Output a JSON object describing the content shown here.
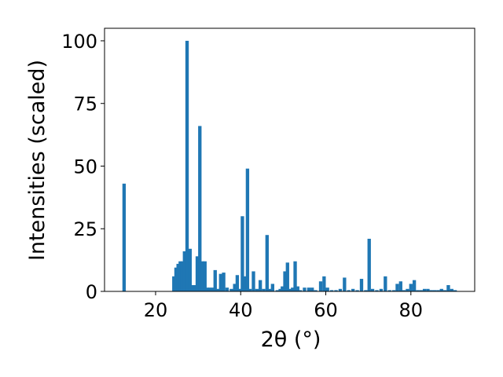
{
  "chart_data": {
    "type": "bar",
    "xlabel": "2θ (°)",
    "ylabel": "Intensities (scaled)",
    "xlim": [
      8,
      95
    ],
    "ylim": [
      0,
      105
    ],
    "xticks": [
      20,
      40,
      60,
      80
    ],
    "yticks": [
      0,
      25,
      50,
      75,
      100
    ],
    "bar_color": "#1f77b4",
    "bar_width": 0.8,
    "grid": false,
    "x": [
      12.6,
      24.3,
      24.8,
      25.3,
      25.8,
      26.3,
      26.8,
      27.4,
      28.1,
      28.7,
      29.3,
      29.8,
      30.4,
      31.0,
      31.6,
      32.1,
      32.7,
      33.4,
      34.0,
      34.6,
      35.3,
      36.0,
      36.8,
      37.8,
      38.6,
      39.2,
      39.8,
      40.4,
      41.0,
      41.6,
      42.2,
      43.0,
      43.8,
      44.6,
      45.4,
      46.2,
      46.8,
      47.5,
      48.6,
      49.3,
      49.8,
      50.4,
      51.0,
      51.6,
      52.2,
      52.8,
      53.4,
      54.0,
      55.0,
      56.0,
      56.8,
      57.6,
      58.8,
      59.6,
      60.4,
      61.4,
      62.4,
      63.4,
      64.4,
      65.4,
      66.4,
      67.4,
      68.4,
      69.4,
      70.2,
      71.0,
      72.0,
      73.0,
      74.0,
      75.0,
      76.0,
      76.8,
      77.6,
      78.4,
      79.2,
      80.0,
      80.8,
      81.6,
      82.4,
      83.2,
      84.0,
      84.8,
      85.6,
      86.4,
      87.2,
      88.0,
      88.8,
      89.6,
      90.4
    ],
    "values": [
      43,
      6,
      9.5,
      11,
      12,
      12,
      16,
      100,
      17,
      2.5,
      2.5,
      14,
      66,
      12,
      12,
      1.5,
      1.5,
      1.5,
      8.5,
      1,
      7,
      7.5,
      1.5,
      1,
      3,
      6.5,
      1,
      30,
      6,
      49,
      1,
      8,
      1,
      4.5,
      1,
      22.5,
      1,
      3,
      0.5,
      1,
      2,
      8,
      11.5,
      1,
      1.5,
      12,
      2,
      0.5,
      1.5,
      1.5,
      1.5,
      0.5,
      4,
      6,
      1.5,
      0.5,
      0.5,
      1,
      5.5,
      0.5,
      1,
      0.5,
      5,
      0.5,
      21,
      1,
      0.5,
      1,
      6,
      0.5,
      0.5,
      3,
      4,
      0.5,
      1,
      3,
      4.5,
      0.5,
      0.5,
      1,
      1,
      0.5,
      0.5,
      0.5,
      1,
      0.5,
      2.5,
      1,
      0.5
    ]
  }
}
